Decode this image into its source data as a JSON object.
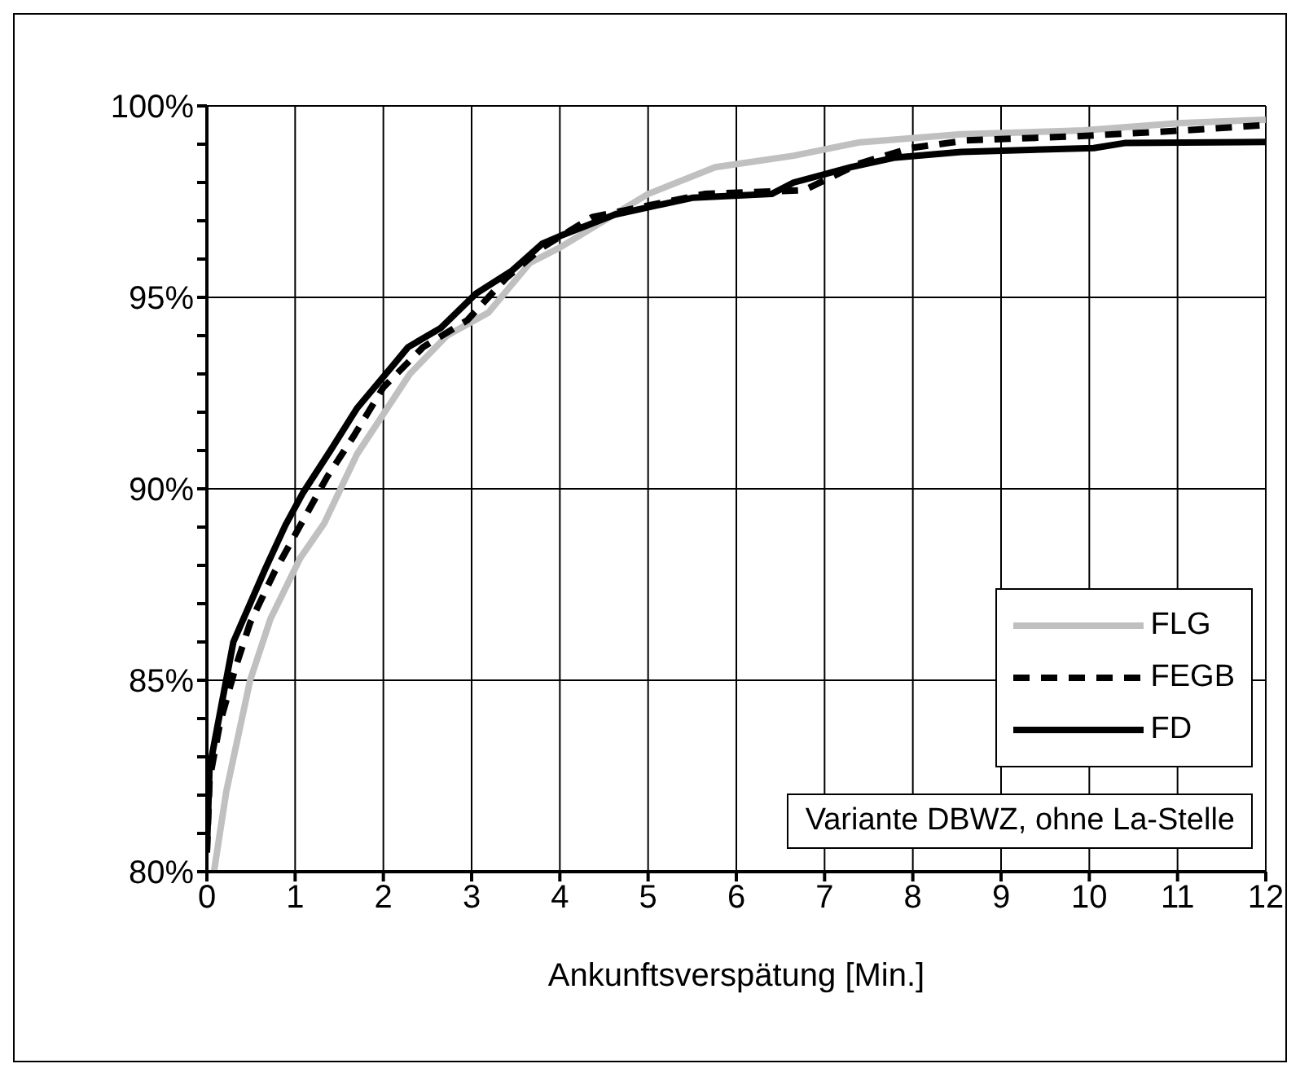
{
  "chart_data": {
    "type": "line",
    "xlabel": "Ankunftsverspätung [Min.]",
    "xlim": [
      0,
      12
    ],
    "xticks": [
      0,
      1,
      2,
      3,
      4,
      5,
      6,
      7,
      8,
      9,
      10,
      11,
      12
    ],
    "ylim": [
      80,
      100
    ],
    "yticks": [
      {
        "value": 80,
        "label": "80%"
      },
      {
        "value": 81,
        "label": null
      },
      {
        "value": 82,
        "label": null
      },
      {
        "value": 83,
        "label": null
      },
      {
        "value": 84,
        "label": null
      },
      {
        "value": 85,
        "label": "85%"
      },
      {
        "value": 86,
        "label": null
      },
      {
        "value": 87,
        "label": null
      },
      {
        "value": 88,
        "label": null
      },
      {
        "value": 89,
        "label": null
      },
      {
        "value": 90,
        "label": "90%"
      },
      {
        "value": 91,
        "label": null
      },
      {
        "value": 92,
        "label": null
      },
      {
        "value": 93,
        "label": null
      },
      {
        "value": 94,
        "label": null
      },
      {
        "value": 95,
        "label": "95%"
      },
      {
        "value": 96,
        "label": null
      },
      {
        "value": 97,
        "label": null
      },
      {
        "value": 98,
        "label": null
      },
      {
        "value": 99,
        "label": null
      },
      {
        "value": 100,
        "label": "100%"
      }
    ],
    "grid": true,
    "legend": "right",
    "marker": "none",
    "annotations": [
      "Variante DBWZ, ohne La-Stelle"
    ],
    "series": [
      {
        "name": "FLG",
        "color": "#c0c0c0",
        "line_style": "solid",
        "x": [
          0.08,
          0.22,
          0.49,
          0.72,
          1.06,
          1.33,
          1.7,
          1.9,
          2.3,
          2.72,
          3.19,
          3.66,
          4.0,
          5.0,
          5.76,
          6.65,
          7.4,
          8.55,
          9.94,
          11.0,
          12.0
        ],
        "values": [
          80.0,
          82.1,
          85.0,
          86.6,
          88.2,
          89.1,
          90.9,
          91.6,
          93.0,
          94.0,
          94.6,
          95.9,
          96.3,
          97.7,
          98.4,
          98.7,
          99.05,
          99.26,
          99.36,
          99.55,
          99.64
        ]
      },
      {
        "name": "FEGB",
        "color": "#000000",
        "line_style": "dashed",
        "x": [
          0.0,
          0.03,
          0.15,
          0.32,
          0.49,
          0.76,
          1.06,
          1.36,
          1.67,
          2.0,
          2.45,
          2.95,
          3.39,
          3.8,
          4.37,
          5.64,
          6.77,
          7.4,
          7.98,
          8.61,
          9.8,
          11.0,
          12.0
        ],
        "values": [
          80.5,
          82.4,
          83.9,
          85.3,
          86.5,
          87.8,
          89.05,
          90.3,
          91.4,
          92.65,
          93.7,
          94.4,
          95.5,
          96.3,
          97.1,
          97.7,
          97.8,
          98.5,
          98.9,
          99.1,
          99.2,
          99.35,
          99.5
        ]
      },
      {
        "name": "FD",
        "color": "#000000",
        "line_style": "solid",
        "x": [
          0.0,
          0.03,
          0.3,
          0.66,
          0.89,
          1.09,
          1.4,
          1.7,
          2.1,
          2.28,
          2.65,
          3.05,
          3.46,
          3.8,
          4.0,
          4.62,
          5.1,
          5.5,
          6.4,
          6.65,
          7.3,
          7.8,
          8.55,
          10.05,
          10.4,
          12.0
        ],
        "values": [
          80.55,
          82.7,
          86.0,
          87.9,
          89.05,
          89.9,
          91.0,
          92.1,
          93.2,
          93.7,
          94.2,
          95.1,
          95.7,
          96.4,
          96.6,
          97.16,
          97.4,
          97.6,
          97.7,
          98.0,
          98.4,
          98.65,
          98.8,
          98.9,
          99.03,
          99.06
        ]
      }
    ]
  }
}
